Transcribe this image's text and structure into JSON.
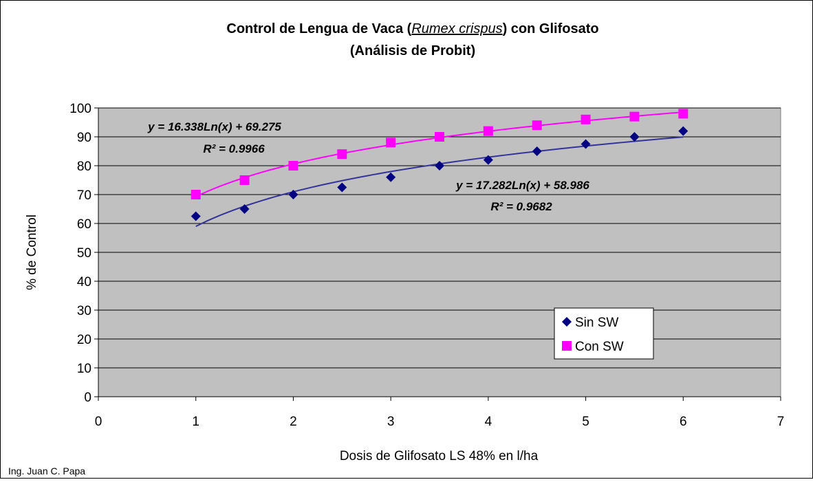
{
  "chart_data": {
    "type": "scatter",
    "title_parts": [
      "Control de Lengua de Vaca (",
      "Rumex crispus",
      ") con Glifosato"
    ],
    "subtitle": "(Análisis de Probit)",
    "x_label": "Dosis de Glifosato LS 48% en l/ha",
    "y_label": "% de Control",
    "footer": "Ing. Juan C. Papa",
    "x": [
      1,
      1.5,
      2,
      2.5,
      3,
      3.5,
      4,
      4.5,
      5,
      5.5,
      6
    ],
    "series": [
      {
        "name": "Sin SW",
        "color": "#000080",
        "line_color": "#333399",
        "marker": "diamond",
        "values": [
          62.5,
          65,
          70,
          72.5,
          76,
          80,
          82,
          85,
          87.5,
          90,
          92
        ],
        "trendline": {
          "coef": 17.282,
          "intercept": 58.986,
          "label": "y = 17.282Ln(x) + 58.986",
          "r2_label": "R² = 0.9682"
        }
      },
      {
        "name": "Con SW",
        "color": "#ff00ff",
        "line_color": "#ff00ff",
        "marker": "square",
        "values": [
          70,
          75,
          80,
          84,
          88,
          90,
          92,
          94,
          96,
          97,
          98
        ],
        "trendline": {
          "coef": 16.338,
          "intercept": 69.275,
          "label": "y = 16.338Ln(x) + 69.275",
          "r2_label": "R² = 0.9966"
        }
      }
    ],
    "xlim": [
      0,
      7
    ],
    "xticks": [
      0,
      1,
      2,
      3,
      4,
      5,
      6,
      7
    ],
    "ylim": [
      0,
      100
    ],
    "yticks": [
      0,
      10,
      20,
      30,
      40,
      50,
      60,
      70,
      80,
      90,
      100
    ],
    "grid": true,
    "legend": "lower-right"
  }
}
